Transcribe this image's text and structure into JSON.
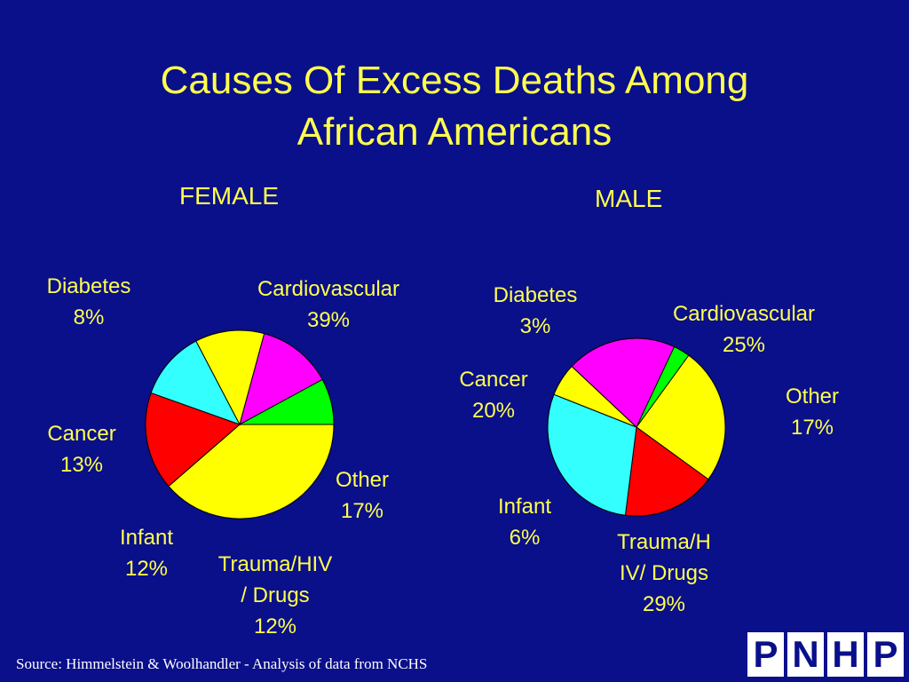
{
  "title_line1": "Causes Of Excess Deaths Among",
  "title_line2": "African Americans",
  "source": "Source: Himmelstein & Woolhandler - Analysis of data from NCHS",
  "logo_letters": [
    "P",
    "N",
    "H",
    "P"
  ],
  "colors": {
    "background": "#0a0f8a",
    "text": "#ffff4d",
    "cardiovascular": "#ffff00",
    "other": "#ff0000",
    "trauma": "#33ffff",
    "infant": "#ffff00",
    "cancer": "#ff00ff",
    "diabetes": "#00ff00"
  },
  "chart_data": [
    {
      "type": "pie",
      "title": "FEMALE",
      "slices": [
        {
          "category": "Cardiovascular",
          "value": 39,
          "label_lines": [
            "Cardiovascular",
            "39%"
          ],
          "color": "#ffff00"
        },
        {
          "category": "Other",
          "value": 17,
          "label_lines": [
            "Other",
            "17%"
          ],
          "color": "#ff0000"
        },
        {
          "category": "Trauma/HIV / Drugs",
          "value": 12,
          "label_lines": [
            "Trauma/HIV",
            "/ Drugs",
            "12%"
          ],
          "color": "#33ffff"
        },
        {
          "category": "Infant",
          "value": 12,
          "label_lines": [
            "Infant",
            "12%"
          ],
          "color": "#ffff00"
        },
        {
          "category": "Cancer",
          "value": 13,
          "label_lines": [
            "Cancer",
            "13%"
          ],
          "color": "#ff00ff"
        },
        {
          "category": "Diabetes",
          "value": 8,
          "label_lines": [
            "Diabetes",
            "8%"
          ],
          "color": "#00ff00"
        }
      ]
    },
    {
      "type": "pie",
      "title": "MALE",
      "slices": [
        {
          "category": "Cardiovascular",
          "value": 25,
          "label_lines": [
            "Cardiovascular",
            "25%"
          ],
          "color": "#ffff00"
        },
        {
          "category": "Other",
          "value": 17,
          "label_lines": [
            "Other",
            "17%"
          ],
          "color": "#ff0000"
        },
        {
          "category": "Trauma/HIV/ Drugs",
          "value": 29,
          "label_lines": [
            "Trauma/H",
            "IV/ Drugs",
            "29%"
          ],
          "color": "#33ffff"
        },
        {
          "category": "Infant",
          "value": 6,
          "label_lines": [
            "Infant",
            "6%"
          ],
          "color": "#ffff00"
        },
        {
          "category": "Cancer",
          "value": 20,
          "label_lines": [
            "Cancer",
            "20%"
          ],
          "color": "#ff00ff"
        },
        {
          "category": "Diabetes",
          "value": 3,
          "label_lines": [
            "Diabetes",
            "3%"
          ],
          "color": "#00ff00"
        }
      ]
    }
  ]
}
